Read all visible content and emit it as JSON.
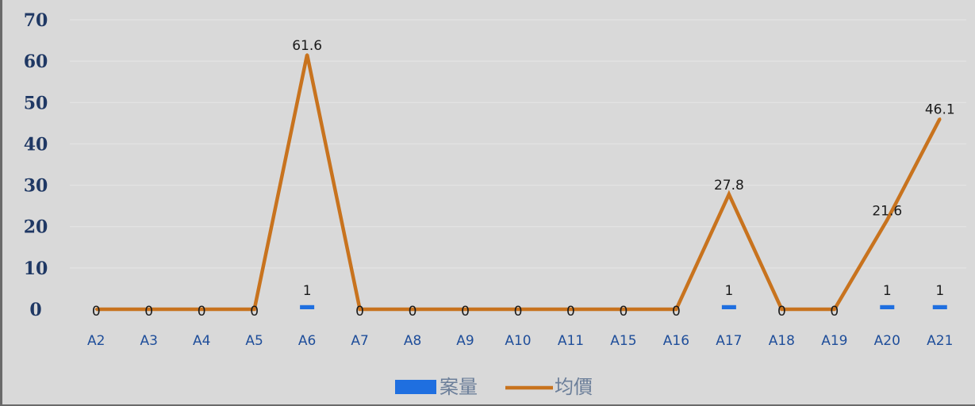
{
  "chart_data": {
    "type": "bar",
    "categories": [
      "A2",
      "A3",
      "A4",
      "A5",
      "A6",
      "A7",
      "A8",
      "A9",
      "A10",
      "A11",
      "A15",
      "A16",
      "A17",
      "A18",
      "A19",
      "A20",
      "A21"
    ],
    "ylim": [
      0,
      70
    ],
    "yticks": [
      0,
      10,
      20,
      30,
      40,
      50,
      60,
      70
    ],
    "grid": true,
    "legend_position": "bottom",
    "series": [
      {
        "name": "案量",
        "type": "bar",
        "color": "#1f6fe0",
        "values": [
          null,
          null,
          null,
          null,
          1,
          null,
          null,
          null,
          null,
          null,
          null,
          null,
          1,
          null,
          null,
          1,
          1
        ],
        "labels": [
          "",
          "",
          "",
          "",
          "1",
          "",
          "",
          "",
          "",
          "",
          "",
          "",
          "1",
          "",
          "",
          "1",
          "1"
        ]
      },
      {
        "name": "均價",
        "type": "line",
        "color": "#c8731e",
        "values": [
          0,
          0,
          0,
          0,
          61.6,
          0,
          0,
          0,
          0,
          0,
          0,
          0,
          27.8,
          0,
          0,
          21.6,
          46.1
        ],
        "labels": [
          "0",
          "0",
          "0",
          "0",
          "61.6",
          "0",
          "0",
          "0",
          "0",
          "0",
          "0",
          "0",
          "27.8",
          "0",
          "0",
          "21.6",
          "46.1"
        ]
      }
    ]
  }
}
